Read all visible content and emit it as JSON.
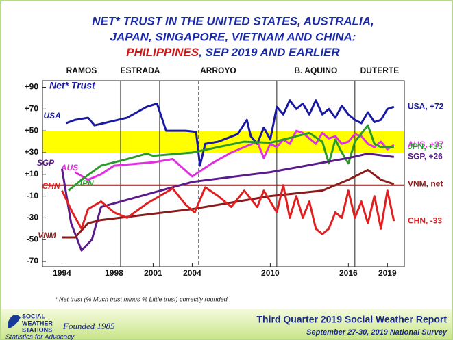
{
  "chart_data": {
    "type": "line",
    "title": [
      "NET* TRUST IN THE UNITED STATES, AUSTRALIA,",
      "JAPAN, SINGAPORE, VIETNAM AND CHINA:"
    ],
    "subtitle": [
      "PHILIPPINES",
      ", SEP 2019 AND EARLIER"
    ],
    "plot_label": "Net* Trust",
    "periods": [
      "RAMOS",
      "ESTRADA",
      "ARROYO",
      "B. AQUINO",
      "DUTERTE"
    ],
    "period_lines": [
      1998.5,
      2001.5,
      2004.5,
      2010.5,
      2016.5
    ],
    "band": [
      30,
      50
    ],
    "band_color": "#ffff00",
    "hline": 0,
    "hline_color": "#8b1a1a",
    "xlim": [
      1992.5,
      2020.3
    ],
    "xticks": [
      1994,
      1998,
      2001,
      2004,
      2010,
      2016,
      2019
    ],
    "ylim": [
      -75,
      96
    ],
    "yticks": [
      {
        "value": 90,
        "label": "+90"
      },
      {
        "value": 70,
        "label": "+70"
      },
      {
        "value": 50,
        "label": "+50"
      },
      {
        "value": 30,
        "label": "+30"
      },
      {
        "value": 10,
        "label": "+10"
      },
      -10,
      -30,
      -50,
      -70
    ],
    "series": [
      {
        "name": "USA",
        "end_label": "USA, +72",
        "color": "#1a1aa0",
        "x": [
          1994.3,
          1995,
          1996,
          1996.5,
          1999,
          2000.5,
          2001.3,
          2002,
          2003.5,
          2004.3,
          2004.6,
          2005,
          2006,
          2007.5,
          2008.2,
          2008.5,
          2009,
          2009.5,
          2010,
          2010.5,
          2011,
          2011.5,
          2012,
          2012.5,
          2013,
          2013.5,
          2014,
          2014.5,
          2015,
          2015.5,
          2016,
          2016.5,
          2017,
          2017.5,
          2018,
          2018.5,
          2019,
          2019.5
        ],
        "values": [
          57,
          60,
          62,
          55,
          62,
          72,
          75,
          50,
          50,
          49,
          18,
          38,
          40,
          47,
          60,
          45,
          38,
          53,
          42,
          72,
          65,
          78,
          70,
          75,
          65,
          78,
          65,
          70,
          62,
          73,
          65,
          60,
          57,
          67,
          58,
          60,
          70,
          72
        ]
      },
      {
        "name": "AUS",
        "end_label": "AUS, +37",
        "color": "#e030e0",
        "x": [
          1995,
          1996,
          1997,
          1998,
          2001,
          2002.5,
          2004,
          2005.5,
          2007,
          2009,
          2009.5,
          2010,
          2010.5,
          2011,
          2011.5,
          2012,
          2012.5,
          2013,
          2013.5,
          2014,
          2014.5,
          2015,
          2015.5,
          2016,
          2016.5,
          2017,
          2017.5,
          2018,
          2018.5,
          2019,
          2019.5
        ],
        "values": [
          12,
          5,
          10,
          18,
          21,
          24,
          8,
          20,
          30,
          40,
          25,
          38,
          35,
          42,
          38,
          50,
          48,
          43,
          38,
          48,
          43,
          45,
          38,
          40,
          47,
          45,
          38,
          35,
          40,
          33,
          37
        ]
      },
      {
        "name": "JPN",
        "end_label": "JPN, +35",
        "color": "#2a9a2a",
        "x": [
          1994.5,
          1995.5,
          1997,
          1999,
          2000.5,
          2001,
          2004,
          2008,
          2010,
          2013,
          2014,
          2014.5,
          2015,
          2015.5,
          2016,
          2016.5,
          2017.5,
          2018,
          2018.5,
          2019.5
        ],
        "values": [
          -5,
          5,
          18,
          24,
          29,
          27,
          30,
          40,
          39,
          48,
          40,
          20,
          42,
          30,
          20,
          40,
          55,
          38,
          35,
          35
        ]
      },
      {
        "name": "SGP",
        "end_label": "SGP, +26",
        "color": "#5a1a8a",
        "x": [
          1994,
          1994.7,
          1995.5,
          1996.3,
          1997,
          2004,
          2010,
          2016,
          2017.5,
          2019.5
        ],
        "values": [
          15,
          -35,
          -60,
          -50,
          -20,
          3,
          12,
          25,
          29,
          26
        ]
      },
      {
        "name": "VNM",
        "end_label": "VNM, net",
        "color": "#8b1a1a",
        "x": [
          1994,
          1995,
          1996,
          1997,
          2004,
          2010,
          2014,
          2016,
          2017.5,
          2018.5,
          2019.5
        ],
        "values": [
          -48,
          -48,
          -35,
          -32,
          -22,
          -10,
          -5,
          5,
          14,
          5,
          1
        ]
      },
      {
        "name": "CHN",
        "end_label": "CHN, -33",
        "color": "#e02020",
        "x": [
          1994,
          1994.8,
          1995.5,
          1996,
          1997,
          1998,
          1999,
          2000.5,
          2001.5,
          2002.5,
          2003.5,
          2004.2,
          2005,
          2006,
          2007,
          2008,
          2009,
          2009.5,
          2010,
          2010.5,
          2011,
          2011.5,
          2012,
          2012.5,
          2013,
          2013.5,
          2014,
          2014.5,
          2015,
          2015.5,
          2016,
          2016.5,
          2017,
          2017.5,
          2018,
          2018.5,
          2019,
          2019.5
        ],
        "values": [
          -5,
          -25,
          -40,
          -22,
          -15,
          -25,
          -30,
          -17,
          -10,
          -3,
          -18,
          -25,
          -2,
          -10,
          -20,
          -5,
          -20,
          -5,
          -15,
          -25,
          0,
          -30,
          -10,
          -30,
          -15,
          -40,
          -45,
          -40,
          -25,
          -30,
          -5,
          -30,
          -15,
          -35,
          -10,
          -40,
          -5,
          -33
        ]
      }
    ],
    "footnote": "* Net trust (% Much trust minus % Little trust) correctly rounded.",
    "org": [
      "SOCIAL",
      "WEATHER",
      "STATIONS"
    ],
    "founded": "Founded 1985",
    "tagline": "Statistics for Advocacy",
    "report": "Third Quarter 2019 Social Weather Report",
    "survey": "September 27-30, 2019 National Survey"
  }
}
